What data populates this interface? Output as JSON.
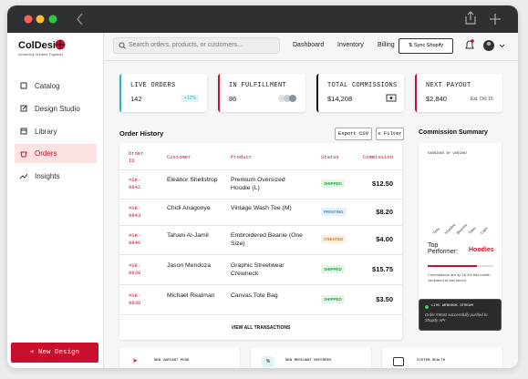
{
  "sidebar": {
    "brand": "ColDesi",
    "tagline": "Achieving Dreams Together",
    "nav": [
      "Catalog",
      "Design Studio",
      "Library",
      "Orders",
      "Insights"
    ],
    "new_design": "+ New Design"
  },
  "header": {
    "search_placeholder": "Search orders, products, or customers...",
    "links": [
      "Dashboard",
      "Inventory",
      "Billing"
    ],
    "sync": "Sync Shopify"
  },
  "stats": [
    {
      "title": "LIVE ORDERS",
      "value": "142",
      "badge": "+12%"
    },
    {
      "title": "IN FULFILLMENT",
      "value": "86"
    },
    {
      "title": "TOTAL COMMISSIONS",
      "value": "$14,208"
    },
    {
      "title": "NEXT PAYOUT",
      "value": "$2,840",
      "note": "Est. Oct 15"
    }
  ],
  "orders": {
    "title": "Order History",
    "buttons": [
      "Export CSV",
      "Filter"
    ],
    "columns": [
      "Order ID",
      "Customer",
      "Product",
      "Status",
      "Commission"
    ],
    "rows": [
      [
        "#SK-9842",
        "Eleanor Shellstrop",
        "Premium Oversized Hoodie (L)",
        "SHIPPED",
        "$12.50"
      ],
      [
        "#SK-9843",
        "Chidi Anagonye",
        "Vintage Wash Tee (M)",
        "PRINTING",
        "$8.20"
      ],
      [
        "#SK-9840",
        "Tahani Al-Jamil",
        "Embroidered Beanie (One Size)",
        "CREATED",
        "$4.00"
      ],
      [
        "#SK-9839",
        "Jason Mendoza",
        "Graphic Streetwear Crewneck",
        "SHIPPED",
        "$15.75"
      ],
      [
        "#SK-9838",
        "Michael Realman",
        "Canvas Tote Bag",
        "SHIPPED",
        "$3.50"
      ]
    ],
    "footer": "VIEW ALL TRANSACTIONS"
  },
  "summary": {
    "title": "Commission Summary",
    "chart_label": "EARNINGS BY VARIANT",
    "variants": [
      "Tees",
      "Hoodies",
      "Beanies",
      "Totes",
      "Caps"
    ],
    "top_label": "Top Performer:",
    "top_value": "Hoodies",
    "note": "Commissions are up 18.4% this month compared to last period."
  },
  "webhook": {
    "title": "LIVE WEBHOOK STREAM",
    "message": "Order #9042 successfully pushed to Shopify API"
  },
  "bottom_cards": [
    "NEW VARIANT PEAK",
    "NEW MERCHANT REFERRED",
    "SYSTEM HEALTH"
  ]
}
